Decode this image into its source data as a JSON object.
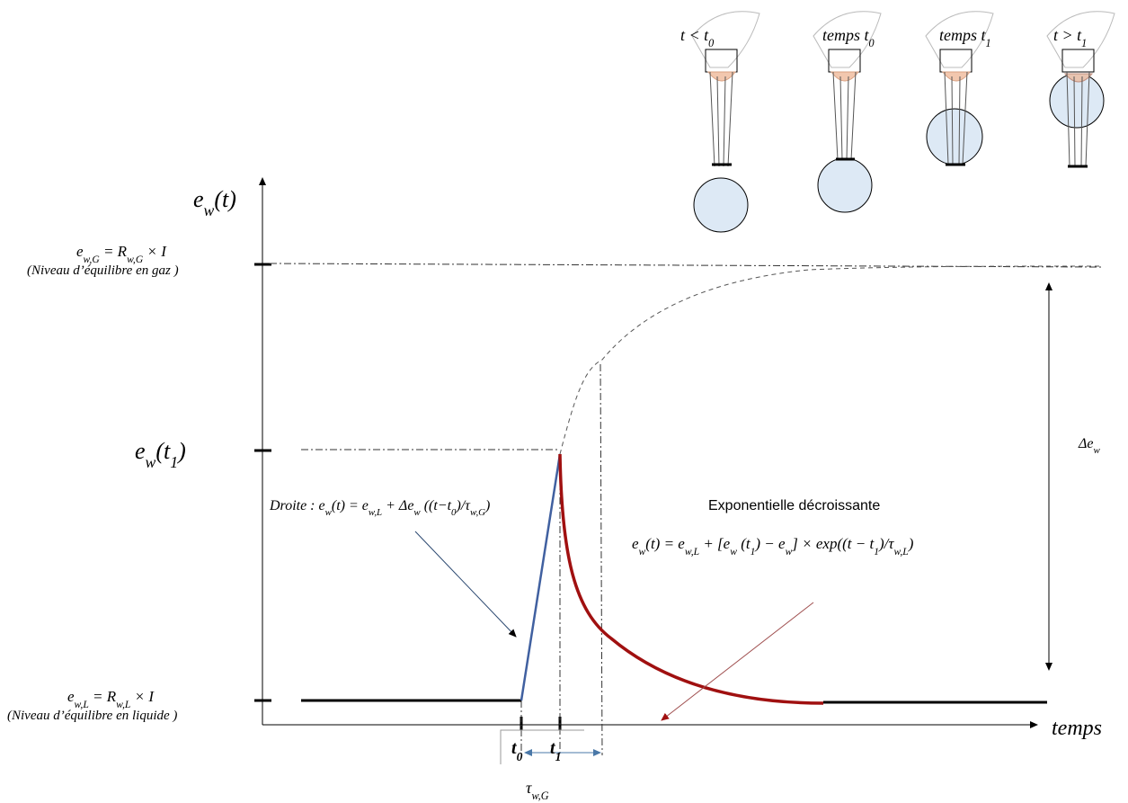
{
  "probes": [
    [
      "t < t",
      {
        "sub": "0"
      }
    ],
    [
      "temps t",
      {
        "sub": "0"
      }
    ],
    [
      "temps t",
      {
        "sub": "1"
      }
    ],
    [
      "t > t",
      {
        "sub": "1"
      }
    ]
  ],
  "y_axis_label": [
    "e",
    {
      "sub": "w"
    },
    "(t)"
  ],
  "gas_level": {
    "formula": [
      "e",
      {
        "sub": "w,G"
      },
      " = R",
      {
        "sub": "w,G"
      },
      " × I"
    ],
    "note": "(Niveau  d’équilibre en gaz )"
  },
  "t1_level": [
    "e",
    {
      "sub": "w"
    },
    "(t",
    {
      "sub": "1"
    },
    ")"
  ],
  "liquid_level": {
    "formula": [
      "e",
      {
        "sub": "w,L"
      },
      " = R",
      {
        "sub": "w,L"
      },
      " × I"
    ],
    "note": "(Niveau  d’équilibre en liquide )"
  },
  "line_annotation": [
    "Droite : e",
    {
      "sub": "w"
    },
    "(t) = e",
    {
      "sub": "w,L"
    },
    " + Δe",
    {
      "sub": "w"
    },
    " ((t−t",
    {
      "sub": "0"
    },
    ")/τ",
    {
      "sub": "w,G"
    },
    ")"
  ],
  "exp_title": "Exponentielle décroissante",
  "exp_formula": [
    "e",
    {
      "sub": "w"
    },
    "(t) = e",
    {
      "sub": "w,L"
    },
    " + [e",
    {
      "sub": "w"
    },
    " (t",
    {
      "sub": "1"
    },
    ") − e",
    {
      "sub": "w"
    },
    "] × exp((t − t",
    {
      "sub": "1"
    },
    ")/τ",
    {
      "sub": "w,L"
    },
    ")"
  ],
  "delta_label": [
    "Δe",
    {
      "sub": "w"
    }
  ],
  "x_axis_label": "temps",
  "t0_label": [
    "t",
    {
      "sub": "0"
    }
  ],
  "t1_label": [
    "t",
    {
      "sub": "1"
    }
  ],
  "tau_label": [
    "τ",
    {
      "sub": "w,G"
    }
  ]
}
